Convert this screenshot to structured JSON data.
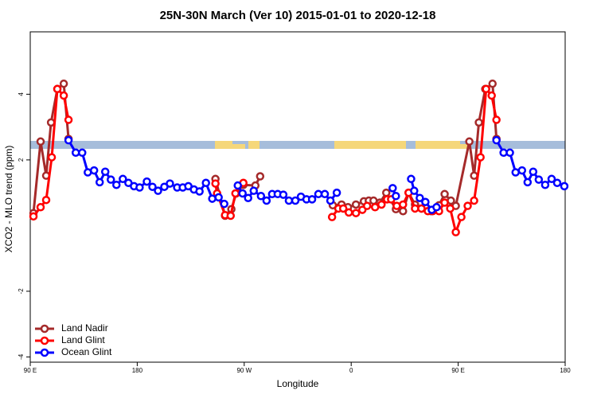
{
  "chart_data": {
    "type": "line",
    "title": "25N-30N March (Ver 10)   2015-01-01 to 2020-12-18",
    "x_label": "Longitude",
    "y_label": "XCO2 - MLO trend (ppm)",
    "xlim": [
      90,
      540
    ],
    "xticks": [
      {
        "value": 90,
        "label": "90 E"
      },
      180,
      {
        "value": 270,
        "label": "90 W"
      },
      {
        "value": 360,
        "label": "0"
      },
      {
        "value": 450,
        "label": "90 E"
      },
      {
        "value": 540,
        "label": "180"
      }
    ],
    "ylim": [
      -4.16,
      5.9
    ],
    "yticks": [
      -4,
      -2,
      2,
      4
    ],
    "grid": false,
    "legend": "bottom-left",
    "series": [
      {
        "name": "Land Nadir",
        "color": "#a52a2a",
        "x": [
          92.7,
          98.7,
          103.4,
          107.5,
          112.8,
          118.2,
          122.2,
          null,
          245.8,
          253.9,
          259.2,
          263.3,
          269.3,
          279.4,
          283.4,
          null,
          344.5,
          351.9,
          357.3,
          364.0,
          370.7,
          374.8,
          378.8,
          384.2,
          389.5,
          397.6,
          403.6,
          408.3,
          413.7,
          419.1,
          427.1,
          433.9,
          438.6,
          443.9,
          448.0,
          459.4,
          463.4,
          467.4,
          472.8,
          478.9,
          482.2
        ],
        "values": [
          0.38,
          2.56,
          1.52,
          3.14,
          4.16,
          4.32,
          2.64,
          null,
          1.42,
          0.3,
          0.5,
          0.98,
          1.24,
          1.22,
          1.5,
          null,
          0.62,
          0.64,
          0.56,
          0.64,
          0.74,
          0.76,
          0.76,
          0.7,
          1.0,
          0.5,
          0.44,
          1.0,
          0.64,
          0.52,
          0.44,
          0.62,
          0.96,
          0.76,
          0.6,
          2.56,
          1.52,
          3.14,
          4.16,
          4.32,
          2.64
        ]
      },
      {
        "name": "Land Glint",
        "color": "#ff0000",
        "x": [
          92.7,
          98.7,
          103.4,
          108.1,
          112.8,
          118.2,
          122.2,
          null,
          245.8,
          247.2,
          253.9,
          258.6,
          262.6,
          269.3,
          null,
          343.9,
          349.2,
          353.3,
          358.0,
          364.0,
          369.4,
          373.4,
          380.1,
          385.5,
          390.2,
          393.6,
          398.3,
          403.6,
          408.3,
          413.7,
          419.1,
          424.5,
          428.5,
          433.9,
          438.6,
          443.3,
          448.0,
          452.7,
          458.0,
          463.4,
          468.8,
          473.5,
          478.2,
          482.2
        ],
        "values": [
          0.28,
          0.56,
          0.78,
          2.08,
          4.16,
          3.96,
          3.22,
          null,
          1.28,
          0.98,
          0.32,
          0.3,
          0.98,
          1.3,
          null,
          0.26,
          0.52,
          0.52,
          0.4,
          0.38,
          0.48,
          0.6,
          0.56,
          0.64,
          0.8,
          0.8,
          0.6,
          0.64,
          1.0,
          0.52,
          0.52,
          0.44,
          0.44,
          0.44,
          0.7,
          0.52,
          -0.2,
          0.26,
          0.6,
          0.76,
          2.08,
          4.16,
          3.96,
          3.22
        ]
      },
      {
        "name": "Ocean Glint",
        "color": "#0000ff",
        "x": [
          122.2,
          128.3,
          133.7,
          138.4,
          143.7,
          148.4,
          153.1,
          157.8,
          162.5,
          167.9,
          172.6,
          177.3,
          182.0,
          188.1,
          192.8,
          197.5,
          202.8,
          207.5,
          213.6,
          218.3,
          223.0,
          227.7,
          232.4,
          237.8,
          243.1,
          248.5,
          253.2,
          null,
          264.6,
          268.6,
          273.3,
          278.0,
          284.1,
          288.8,
          293.5,
          298.2,
          302.9,
          307.6,
          313.0,
          317.7,
          322.4,
          327.1,
          332.4,
          337.8,
          342.5,
          347.9,
          null,
          394.9,
          397.6,
          null,
          410.4,
          413.0,
          417.7,
          422.4,
          427.8,
          431.8,
          null,
          482.2,
          488.2,
          493.5,
          498.3,
          503.7,
          508.4,
          513.1,
          517.8,
          523.2,
          528.6,
          533.3,
          539.3
        ],
        "values": [
          2.6,
          2.22,
          2.22,
          1.62,
          1.68,
          1.32,
          1.64,
          1.4,
          1.24,
          1.42,
          1.3,
          1.2,
          1.16,
          1.34,
          1.18,
          1.06,
          1.18,
          1.28,
          1.16,
          1.16,
          1.2,
          1.1,
          1.04,
          1.3,
          0.82,
          0.86,
          0.66,
          null,
          1.22,
          0.98,
          0.84,
          1.06,
          0.9,
          0.76,
          0.96,
          0.96,
          0.94,
          0.76,
          0.76,
          0.88,
          0.8,
          0.8,
          0.96,
          0.96,
          0.76,
          1.0,
          null,
          1.14,
          0.9,
          null,
          1.42,
          1.06,
          0.84,
          0.72,
          0.48,
          0.56,
          null,
          2.6,
          2.22,
          2.22,
          1.62,
          1.68,
          1.32,
          1.64,
          1.4,
          1.24,
          1.42,
          1.3,
          1.2
        ]
      }
    ]
  }
}
